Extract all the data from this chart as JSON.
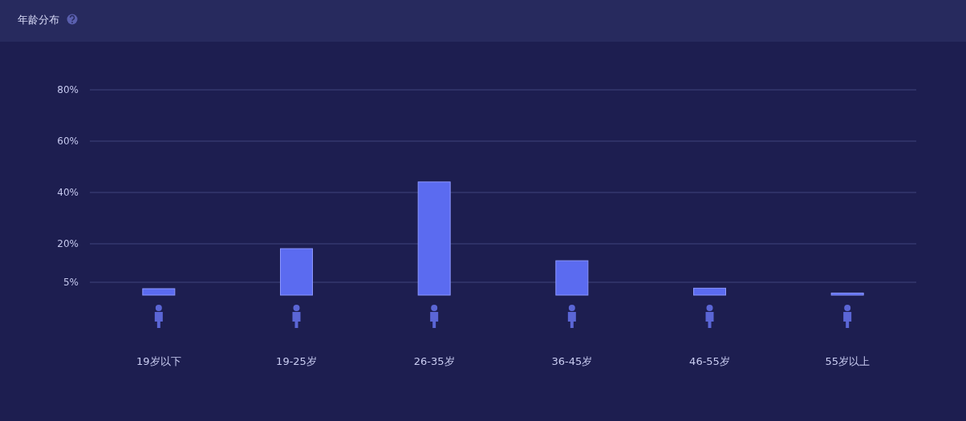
{
  "chart_data": {
    "type": "bar",
    "title": "年龄分布",
    "categories": [
      "19岁以下",
      "19-25岁",
      "26-35岁",
      "36-45岁",
      "46-55岁",
      "55岁以上"
    ],
    "values": [
      2.5,
      18.1,
      44.1,
      13.4,
      2.7,
      0.8
    ],
    "color": "#5b6bf0",
    "ylim": [
      0,
      80
    ],
    "yticks": [
      {
        "value": 5,
        "label": "5%"
      },
      {
        "value": 20,
        "label": "20%"
      },
      {
        "value": 40,
        "label": "40%"
      },
      {
        "value": 60,
        "label": "60%"
      },
      {
        "value": 80,
        "label": "80%"
      }
    ],
    "grid": "y"
  }
}
